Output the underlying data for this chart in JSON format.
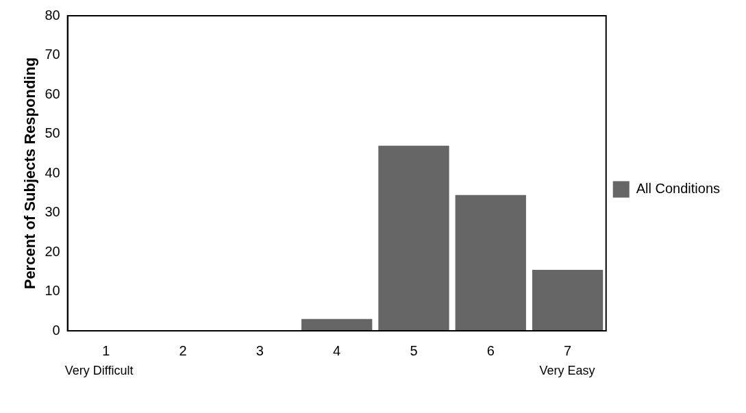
{
  "chart_data": {
    "type": "bar",
    "ylabel": "Percent of Subjects Responding",
    "categories": [
      "1",
      "2",
      "3",
      "4",
      "5",
      "6",
      "7"
    ],
    "series": [
      {
        "name": "All Conditions",
        "color": "#666666",
        "values": [
          0,
          0,
          0,
          3,
          47,
          34.5,
          15.5
        ]
      }
    ],
    "ylim": [
      0,
      80
    ],
    "yticks": [
      0,
      10,
      20,
      30,
      40,
      50,
      60,
      70,
      80
    ],
    "grid": false,
    "legend": "right",
    "annotations": [
      "Very Difficult",
      "Very Easy"
    ]
  }
}
